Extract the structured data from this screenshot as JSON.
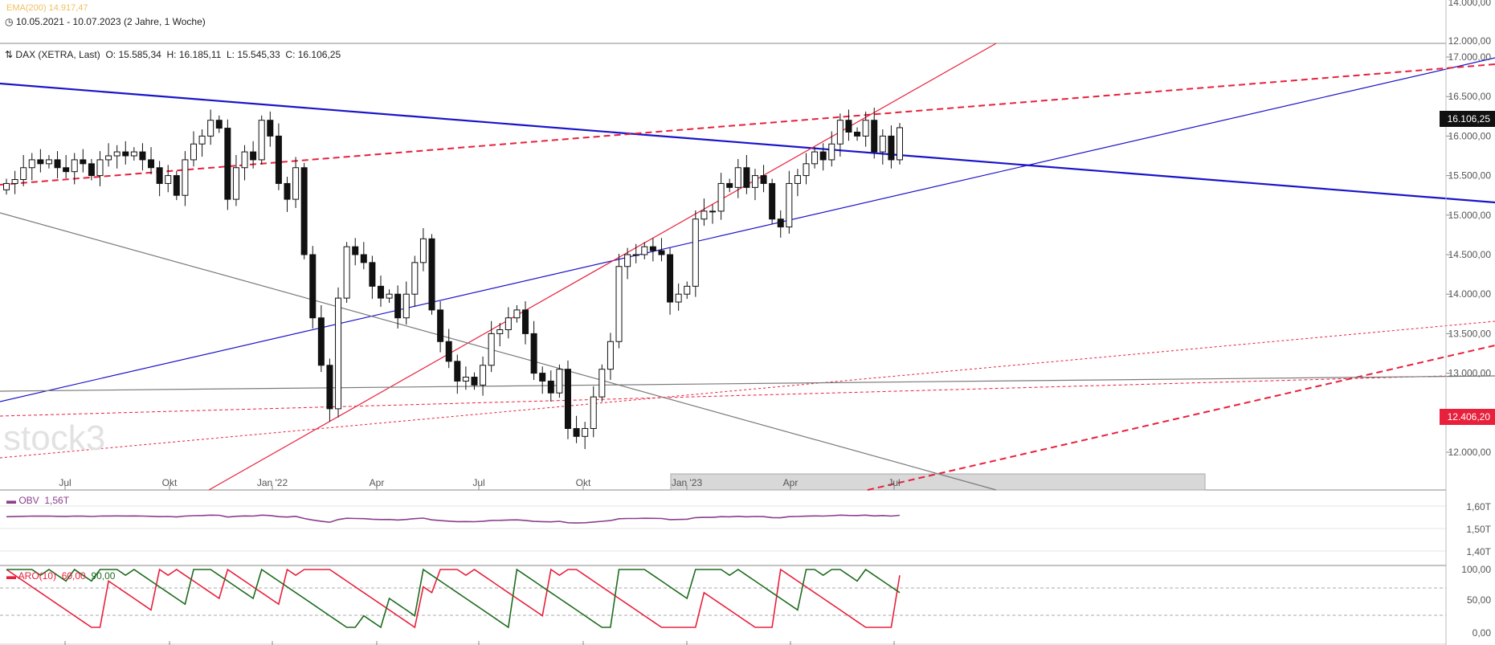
{
  "header": {
    "ema_label": "EMA(200) 14.917,47",
    "period": "10.05.2021 - 10.07.2023",
    "duration": "(2 Jahre, 1 Woche)",
    "instrument": "DAX (XETRA, Last)",
    "ohlc": {
      "o": "O: 15.585,34",
      "h": "H: 16.185,11",
      "l": "L: 15.545,33",
      "c": "C: 16.106,25"
    }
  },
  "watermark": "stock3",
  "colors": {
    "blue": "#1a14c8",
    "red": "#e8203c",
    "gray": "#7a7a7a",
    "obv": "#8b3f8b",
    "aroon_down": "#e8203c",
    "aroon_up": "#1f6b1f"
  },
  "price_axis": {
    "ticks": [
      "17.000,00",
      "16.500,00",
      "16.000,00",
      "15.500,00",
      "15.000,00",
      "14.500,00",
      "14.000,00",
      "13.500,00",
      "13.000,00",
      "12.500,00",
      "12.000,00"
    ],
    "top_ticks": [
      "14.000,00",
      "12.000,00"
    ]
  },
  "badges": {
    "last": "16.106,25",
    "level": "12.406,20"
  },
  "x_labels": [
    "Jul",
    "Okt",
    "Jan '22",
    "Apr",
    "Jul",
    "Okt",
    "Jan '23",
    "Apr",
    "Jul"
  ],
  "obv": {
    "label": "OBV",
    "value": "1,56T",
    "ticks": [
      "1,60T",
      "1,50T",
      "1,40T"
    ]
  },
  "aroon": {
    "label": "ARO(10)",
    "v1": "60,00",
    "v2": "90,00",
    "ticks": [
      "100,00",
      "50,00",
      "0,00"
    ]
  },
  "chart_data": {
    "type": "candlestick",
    "title": "DAX (XETRA, Last)",
    "interval": "weekly",
    "range": "10.05.2021 - 10.07.2023",
    "ylim": [
      11700,
      17200
    ],
    "closes": [
      15400,
      15450,
      15600,
      15700,
      15650,
      15700,
      15600,
      15550,
      15700,
      15650,
      15500,
      15700,
      15750,
      15800,
      15750,
      15800,
      15700,
      15600,
      15400,
      15500,
      15250,
      15700,
      15900,
      16000,
      16200,
      16100,
      15200,
      15600,
      15800,
      15700,
      16200,
      16000,
      15400,
      15200,
      15600,
      14500,
      13700,
      13100,
      12550,
      13950,
      14600,
      14500,
      14400,
      14100,
      13950,
      14000,
      13700,
      14000,
      14400,
      14700,
      13800,
      13400,
      13150,
      12900,
      12950,
      12850,
      13100,
      13500,
      13550,
      13700,
      13800,
      13500,
      13000,
      12900,
      12750,
      13050,
      12300,
      12200,
      12300,
      12700,
      13050,
      13400,
      14350,
      14500,
      14500,
      14600,
      14550,
      14500,
      13900,
      14000,
      14100,
      14950,
      15050,
      15050,
      15400,
      15350,
      15600,
      15350,
      15500,
      15400,
      14950,
      14850,
      15400,
      15500,
      15650,
      15800,
      15700,
      15900,
      16200,
      16050,
      16000,
      16200,
      15800,
      16000,
      15700,
      16106
    ]
  }
}
